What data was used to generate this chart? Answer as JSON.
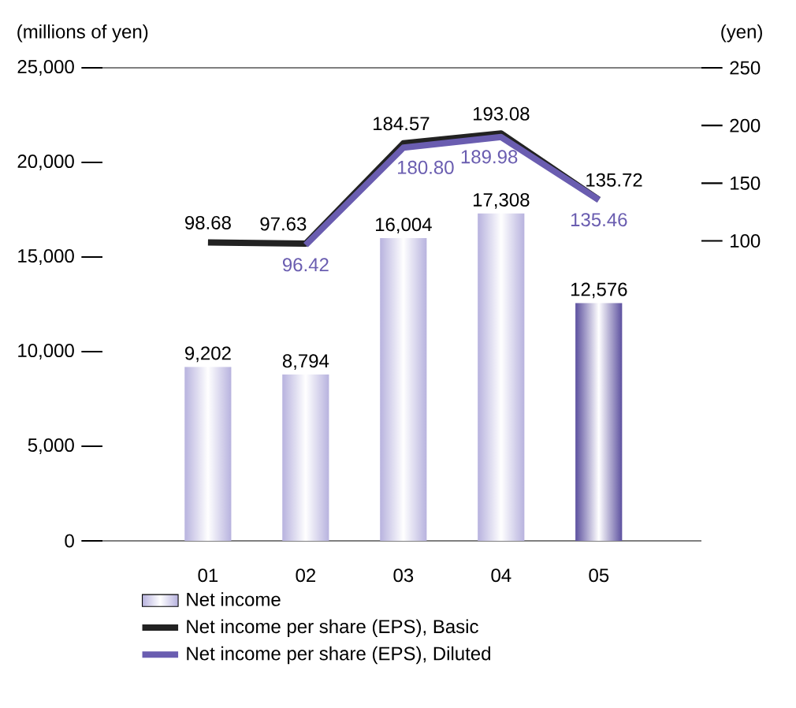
{
  "chart_data": {
    "type": "bar",
    "categories": [
      "01",
      "02",
      "03",
      "04",
      "05"
    ],
    "ylabel": "(millions of yen)",
    "y2label": "(yen)",
    "ylim": [
      0,
      25000
    ],
    "yticks": [
      0,
      {
        "value": 5000,
        "label": "5,000"
      },
      {
        "value": 10000,
        "label": "10,000"
      },
      {
        "value": 15000,
        "label": "15,000"
      },
      {
        "value": 20000,
        "label": "20,000"
      },
      {
        "value": 25000,
        "label": "25,000"
      }
    ],
    "y2lim": [
      -160,
      250
    ],
    "y2ticks": [
      100,
      150,
      200,
      250
    ],
    "series": [
      {
        "name": "Net income",
        "colors": [
          "#b7b2de",
          "#b7b2de",
          "#b7b2de",
          "#b7b2de",
          "#5b4f9e"
        ],
        "color": "#b7b2de",
        "values": [
          9202,
          8794,
          16004,
          17308,
          12576
        ],
        "value_labels": [
          "9,202",
          "8,794",
          "16,004",
          "17,308",
          "12,576"
        ]
      },
      {
        "name": "Net income per share (EPS), Basic",
        "type": "line",
        "axis": "y2",
        "color": "#222222",
        "values": [
          98.68,
          97.63,
          184.57,
          193.08,
          135.72
        ],
        "value_labels": [
          "98.68",
          "97.63",
          "184.57",
          "193.08",
          "135.72"
        ]
      },
      {
        "name": "Net income per share (EPS), Diluted",
        "type": "line",
        "axis": "y2",
        "color": "#6a5db0",
        "values": [
          null,
          96.42,
          180.8,
          189.98,
          135.46
        ],
        "value_labels": [
          null,
          "96.42",
          "180.80",
          "189.98",
          "135.46"
        ]
      }
    ],
    "grid": false,
    "legend": "bottom",
    "marker": "none",
    "line_style": "solid"
  }
}
